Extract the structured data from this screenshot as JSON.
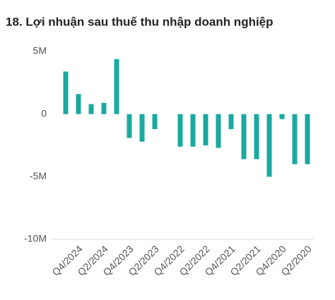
{
  "chart_data": {
    "type": "bar",
    "title": "18. Lợi nhuận sau thuế thu nhập doanh nghiệp",
    "categories": [
      null,
      "Q4/2024",
      null,
      "Q2/2024",
      null,
      "Q4/2023",
      null,
      "Q2/2023",
      null,
      "Q4/2022",
      null,
      "Q2/2022",
      null,
      "Q4/2021",
      null,
      "Q2/2021",
      null,
      "Q4/2020",
      null,
      "Q2/2020"
    ],
    "values": [
      3.4,
      1.6,
      0.8,
      0.9,
      4.4,
      -1.9,
      -2.2,
      -1.2,
      null,
      -2.6,
      -2.6,
      -2.5,
      -2.7,
      -1.2,
      -3.6,
      -3.6,
      -5.0,
      -0.4,
      -4.0,
      -4.0
    ],
    "color": "#1aa9a0",
    "ylim": [
      -10,
      5
    ],
    "yticks": [
      {
        "value": 5,
        "label": "5M"
      },
      0,
      {
        "value": -5,
        "label": "-5M"
      },
      {
        "value": -10,
        "label": "-10M"
      }
    ]
  }
}
